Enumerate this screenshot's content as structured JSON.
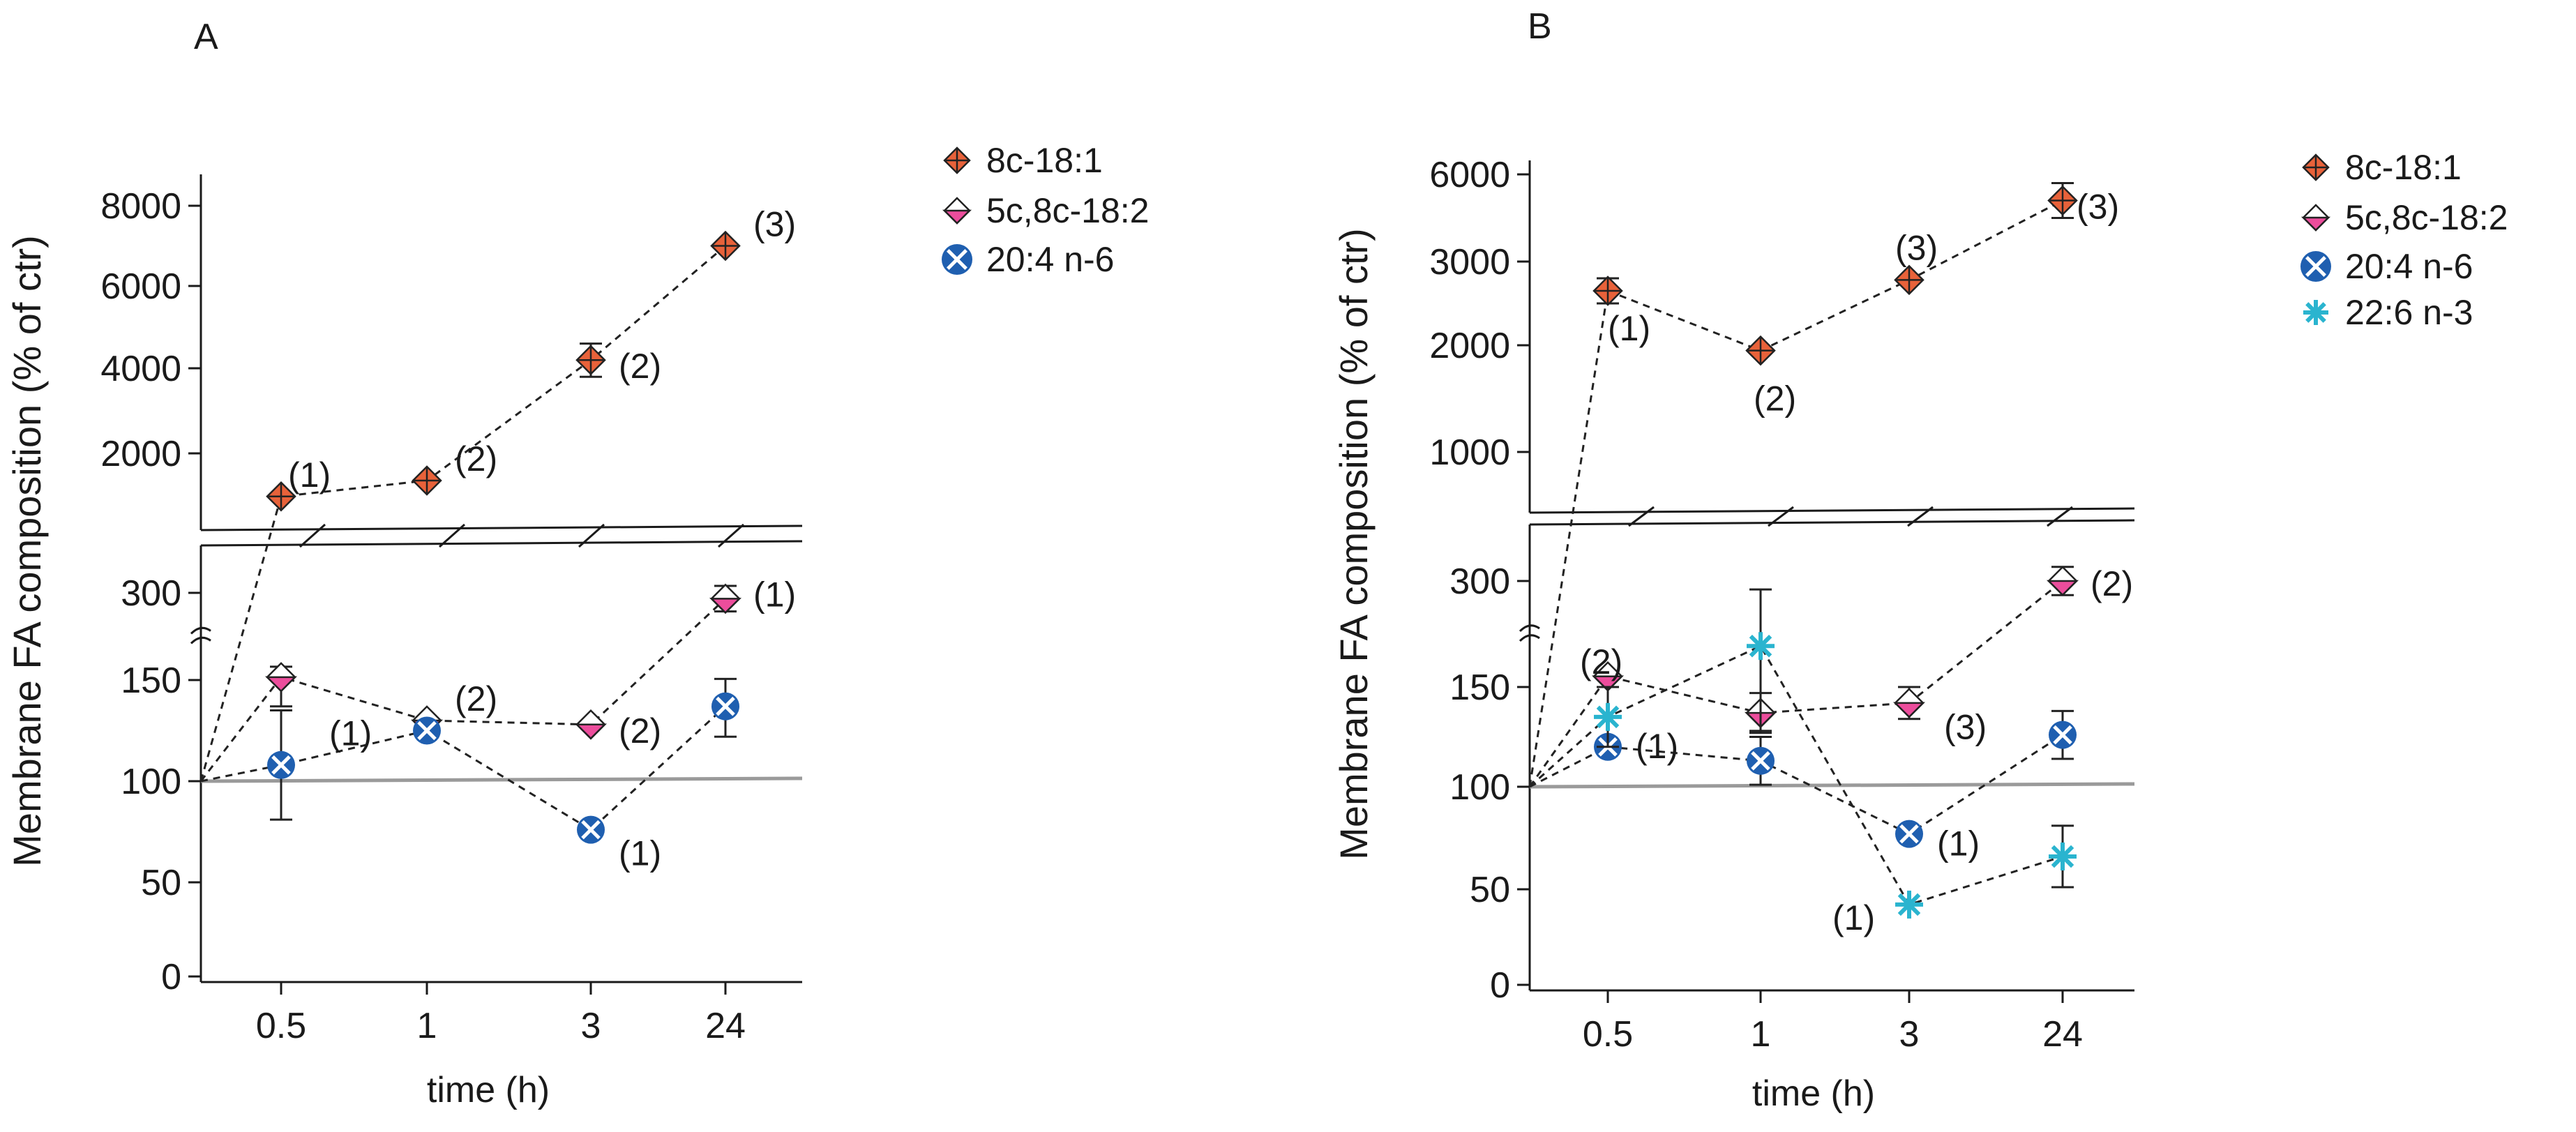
{
  "colors": {
    "c8_18_1": "#e8623a",
    "c5c8_18_2": "#ec4d9c",
    "c20_4": "#1f5fb0",
    "c22_6": "#2ab4cf",
    "baseline": "#9a9a9a",
    "axis": "#1a1a1a"
  },
  "chart_data": [
    {
      "panel": "A",
      "type": "line",
      "title": "",
      "xlabel": "time (h)",
      "ylabel": "Membrane FA composition (% of ctr)",
      "categories": [
        "0.5",
        "1",
        "3",
        "24"
      ],
      "upper_ticks": [
        2000,
        4000,
        6000,
        8000
      ],
      "lower_ticks": [
        0,
        50,
        100,
        150,
        300
      ],
      "ylim_upper": [
        1000,
        8500
      ],
      "ylim_lower": [
        0,
        330
      ],
      "axis_break": true,
      "baseline": 100,
      "legend_position": "right",
      "series": [
        {
          "name": "8c-18:1",
          "marker": "diamond-plus",
          "values": [
            1050,
            1400,
            4200,
            7000
          ],
          "err": [
            0,
            0,
            400,
            0
          ],
          "labels": [
            "(1)",
            "(2)",
            "(2)",
            "(3)"
          ]
        },
        {
          "name": "5c,8c-18:2",
          "marker": "diamond-half",
          "values": [
            155,
            130,
            128,
            290
          ],
          "err": [
            18,
            0,
            0,
            22
          ],
          "labels": [
            "",
            "(2)",
            "(2)",
            "(1)"
          ]
        },
        {
          "name": "20:4 n-6",
          "marker": "circle-x",
          "values": [
            108,
            125,
            76,
            137
          ],
          "err": [
            27,
            0,
            0,
            15
          ],
          "labels": [
            "",
            "(1)",
            "(1)",
            ""
          ]
        }
      ]
    },
    {
      "panel": "B",
      "type": "line",
      "title": "",
      "xlabel": "time (h)",
      "ylabel": "Membrane FA composition (% of ctr)",
      "categories": [
        "0.5",
        "1",
        "3",
        "24"
      ],
      "upper_ticks": [
        1000,
        2000,
        3000,
        6000
      ],
      "lower_ticks": [
        0,
        50,
        100,
        150,
        300
      ],
      "ylim_upper": [
        500,
        6500
      ],
      "ylim_lower": [
        0,
        330
      ],
      "axis_break": true,
      "baseline": 100,
      "legend_position": "right",
      "series": [
        {
          "name": "8c-18:1",
          "marker": "diamond-plus",
          "values": [
            2650,
            1950,
            2780,
            5100
          ],
          "err": [
            150,
            0,
            0,
            600
          ],
          "labels": [
            "(1)",
            "(2)",
            "(3)",
            "(3)"
          ]
        },
        {
          "name": "5c,8c-18:2",
          "marker": "diamond-half",
          "values": [
            165,
            137,
            142,
            300
          ],
          "err": [
            0,
            10,
            8,
            20
          ],
          "labels": [
            "(2)",
            "",
            "",
            "(2)"
          ]
        },
        {
          "name": "20:4 n-6",
          "marker": "circle-x",
          "values": [
            120,
            113,
            77,
            126
          ],
          "err": [
            0,
            12,
            0,
            12
          ],
          "labels": [
            "(1)",
            "",
            "(1)",
            "(3)"
          ]
        },
        {
          "name": "22:6 n-3",
          "marker": "asterisk",
          "values": [
            135,
            208,
            42,
            66
          ],
          "err": [
            15,
            80,
            0,
            15
          ],
          "labels": [
            "",
            "",
            "(1)",
            ""
          ]
        }
      ]
    }
  ]
}
